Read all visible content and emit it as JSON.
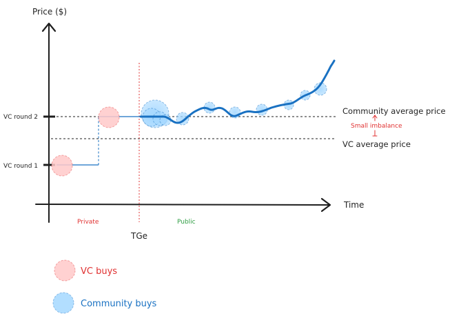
{
  "diagram": {
    "y_axis_label": "Price ($)",
    "x_axis_label": "Time",
    "y_ticks": [
      {
        "label": "VC round 2"
      },
      {
        "label": "VC round 1"
      }
    ],
    "phases": {
      "private": {
        "label": "Private",
        "color": "#e03131"
      },
      "public": {
        "label": "Public",
        "color": "#2f9e44"
      }
    },
    "event_label": "TGe",
    "annotations": {
      "community_avg": "Community average price",
      "vc_avg": "VC average price",
      "imbalance": "Small imbalance"
    },
    "colors": {
      "vc": "#e03131",
      "vc_fill": "#ffc9c9",
      "community": "#1971c2",
      "community_fill": "#a5d8ff",
      "axis": "#1e1e1e"
    }
  },
  "legend": [
    {
      "label": "VC buys",
      "color": "#e03131",
      "fill": "#ffc9c9"
    },
    {
      "label": "Community buys",
      "color": "#1971c2",
      "fill": "#a5d8ff"
    }
  ]
}
